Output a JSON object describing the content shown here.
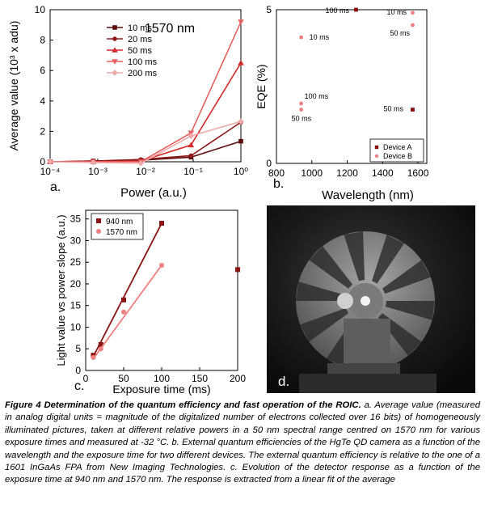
{
  "panel_letters": {
    "a": "a.",
    "b": "b.",
    "c": "c.",
    "d": "d."
  },
  "chart_data": [
    {
      "id": "a",
      "type": "line",
      "xlabel": "Power (a.u.)",
      "ylabel": "Average value (10³ x adu)",
      "annotation": "1570 nm",
      "x_scale": "log",
      "xlim": [
        0.0001,
        1
      ],
      "ylim": [
        0,
        10
      ],
      "x_ticks": [
        "10⁻⁴",
        "10⁻³",
        "10⁻²",
        "10⁻¹",
        "10⁰"
      ],
      "y_ticks": [
        "0",
        "2",
        "4",
        "6",
        "8",
        "10"
      ],
      "legend_position": "top-right",
      "x": [
        0.0001,
        0.0008,
        0.008,
        0.09,
        1
      ],
      "series": [
        {
          "name": "10 ms",
          "color": "#5c0a0a",
          "marker": "square",
          "values": [
            0.0,
            0.05,
            0.1,
            0.3,
            1.35
          ]
        },
        {
          "name": "20 ms",
          "color": "#8e1a1a",
          "marker": "circle",
          "values": [
            0.0,
            0.05,
            0.15,
            0.4,
            2.6
          ]
        },
        {
          "name": "50 ms",
          "color": "#d42a2a",
          "marker": "triangle",
          "values": [
            0.0,
            0.0,
            0.05,
            1.1,
            6.5
          ]
        },
        {
          "name": "100 ms",
          "color": "#e86060",
          "marker": "triangle-down",
          "values": [
            0.0,
            0.0,
            0.0,
            1.9,
            9.2
          ]
        },
        {
          "name": "200 ms",
          "color": "#f1aaaa",
          "marker": "diamond",
          "values": [
            0.0,
            -0.05,
            -0.1,
            1.7,
            2.65
          ]
        }
      ]
    },
    {
      "id": "b",
      "type": "scatter",
      "xlabel": "Wavelength (nm)",
      "ylabel": "EQE (%)",
      "xlim": [
        800,
        1650
      ],
      "ylim": [
        0,
        5
      ],
      "x_ticks": [
        800,
        1000,
        1200,
        1400,
        1600
      ],
      "y_ticks": [
        0,
        5
      ],
      "legend_position": "bottom-right",
      "series": [
        {
          "name": "Device A",
          "color": "#8b0f0f",
          "marker": "square",
          "points": [
            {
              "x": 1250,
              "y": 5.0,
              "label": "100 ms"
            },
            {
              "x": 1570,
              "y": 1.75,
              "label": "50 ms"
            }
          ]
        },
        {
          "name": "Device B",
          "color": "#ee8080",
          "marker": "circle",
          "points": [
            {
              "x": 940,
              "y": 4.1,
              "label": "10 ms"
            },
            {
              "x": 940,
              "y": 1.95,
              "label": "100 ms"
            },
            {
              "x": 940,
              "y": 1.75,
              "label": "50 ms"
            },
            {
              "x": 1570,
              "y": 4.9,
              "label": "10 ms"
            },
            {
              "x": 1570,
              "y": 4.5,
              "label": "50 ms"
            }
          ]
        }
      ]
    },
    {
      "id": "c",
      "type": "scatter",
      "xlabel": "Exposure time (ms)",
      "ylabel": "Light value vs power slope (a.u.)",
      "xlim": [
        0,
        200
      ],
      "ylim": [
        0,
        37
      ],
      "x_ticks": [
        0,
        50,
        100,
        150,
        200
      ],
      "y_ticks": [
        0,
        5,
        10,
        15,
        20,
        25,
        30,
        35
      ],
      "legend_position": "top-left",
      "series": [
        {
          "name": "940 nm",
          "color": "#8b1414",
          "marker": "square",
          "points": [
            {
              "x": 10,
              "y": 3.5
            },
            {
              "x": 20,
              "y": 6.0
            },
            {
              "x": 50,
              "y": 16.3
            },
            {
              "x": 100,
              "y": 34.0
            },
            {
              "x": 200,
              "y": 23.3
            }
          ],
          "fit": [
            [
              10,
              3.2
            ],
            [
              100,
              34.0
            ]
          ]
        },
        {
          "name": "1570 nm",
          "color": "#f08080",
          "marker": "circle",
          "points": [
            {
              "x": 10,
              "y": 3.0
            },
            {
              "x": 20,
              "y": 5.0
            },
            {
              "x": 50,
              "y": 13.5
            },
            {
              "x": 100,
              "y": 24.3
            }
          ],
          "fit": [
            [
              10,
              2.7
            ],
            [
              100,
              24.3
            ]
          ]
        }
      ]
    }
  ],
  "caption": {
    "bold": "Figure 4 Determination of the quantum efficiency and fast operation of the ROIC.",
    "text": " a. Average value (measured in analog digital units = magnitude of the digitalized number of electrons collected over 16 bits) of homogeneously illuminated pictures, taken at different relative powers in a 50 nm spectral range centred on 1570 nm for various exposure times and measured at -32 °C. b. External quantum efficiencies of the HgTe QD camera as a function of the wavelength and the exposure time for two different devices. The external quantum efficiency is relative to the one of a 1601 InGaAs FPA from New Imaging Technologies. c. Evolution of the detector response as a function of the exposure time at 940 nm and 1570 nm. The response is extracted from a linear fit of the average"
  }
}
